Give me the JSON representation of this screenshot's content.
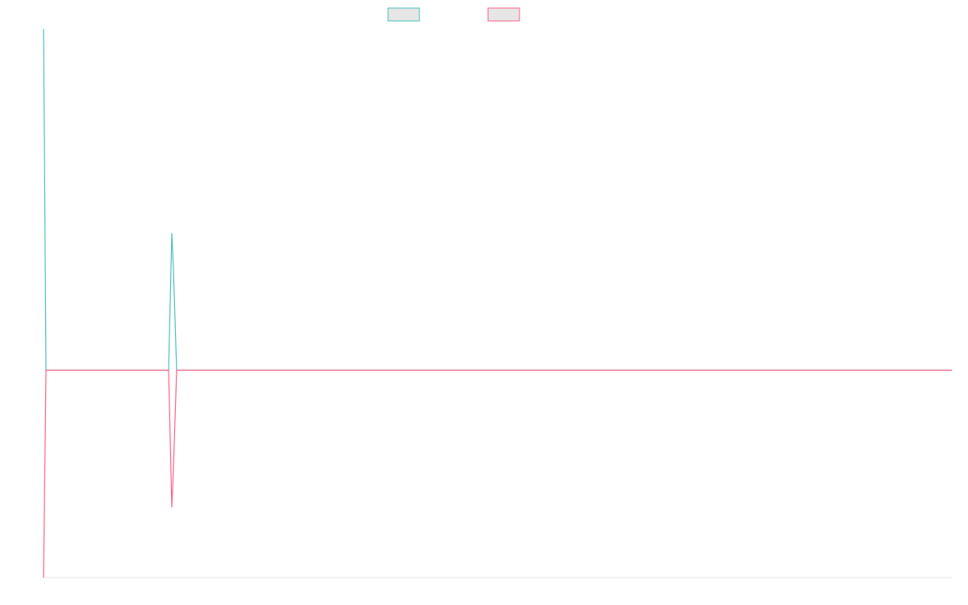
{
  "chart_data": {
    "type": "line",
    "x": [
      0,
      3,
      155,
      159,
      161,
      165,
      1126
    ],
    "xlim": [
      0,
      1126
    ],
    "ylim": [
      -257,
      423
    ],
    "series": [
      {
        "color": "#4bc0c0",
        "values": [
          423,
          0,
          0,
          170,
          124,
          0,
          0
        ]
      },
      {
        "color": "#ff6384",
        "values": [
          -257,
          0,
          0,
          -170,
          -121,
          0,
          0
        ]
      }
    ]
  }
}
